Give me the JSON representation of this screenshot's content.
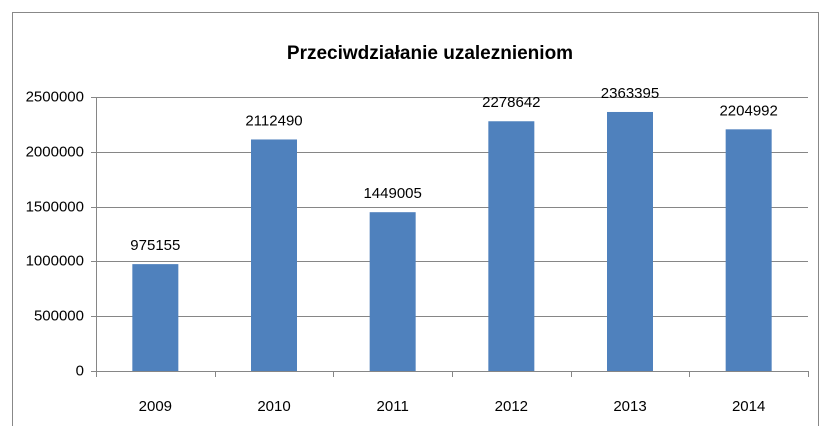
{
  "chart_data": {
    "type": "bar",
    "title": "Przeciwdziałanie uzaleznieniom",
    "categories": [
      "2009",
      "2010",
      "2011",
      "2012",
      "2013",
      "2014"
    ],
    "values": [
      975155,
      2112490,
      1449005,
      2278642,
      2363395,
      2204992
    ],
    "color": "#4f81bd",
    "ylim": [
      0,
      2500000
    ],
    "yticks": [
      0,
      500000,
      1000000,
      1500000,
      2000000,
      2500000
    ],
    "grid": true
  }
}
